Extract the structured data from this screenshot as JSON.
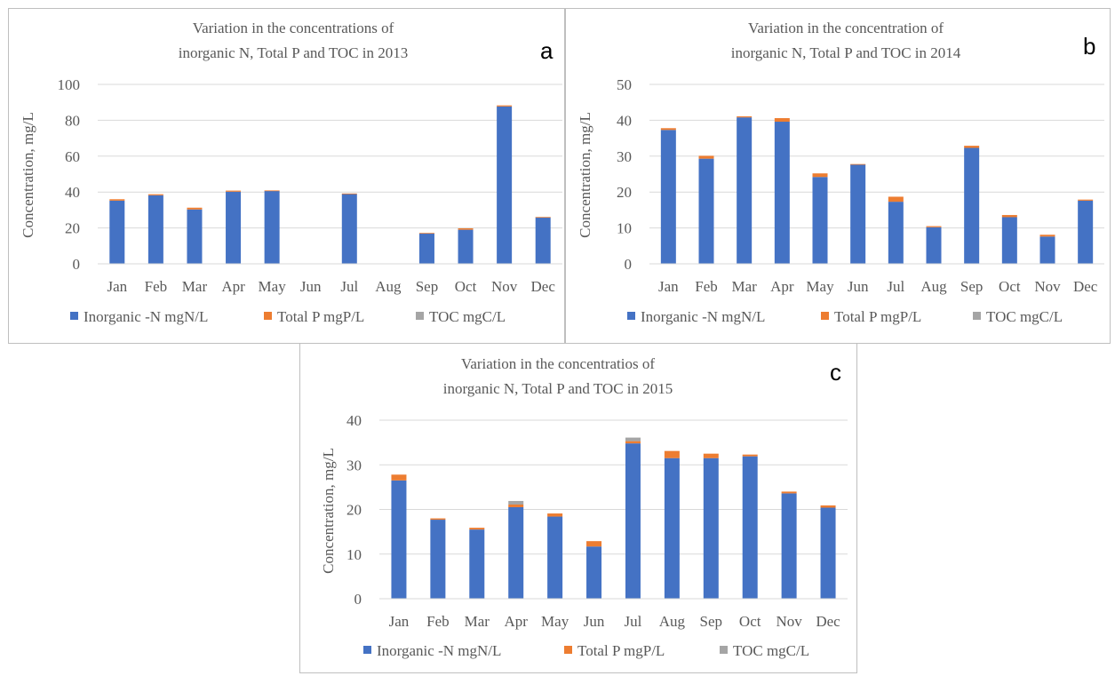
{
  "chart_data": [
    {
      "type": "bar",
      "stacked": true,
      "panel_label": "a",
      "title": [
        "Variation in the concentrations of",
        "inorganic N, Total P and TOC in 2013"
      ],
      "ylabel": "Concentration, mg/L",
      "xlabel": "",
      "ylim": [
        0,
        100
      ],
      "yticks": [
        0,
        20,
        40,
        60,
        80,
        100
      ],
      "grid": true,
      "legend_position": "bottom",
      "categories": [
        "Jan",
        "Feb",
        "Mar",
        "Apr",
        "May",
        "Jun",
        "Jul",
        "Aug",
        "Sep",
        "Oct",
        "Nov",
        "Dec"
      ],
      "series": [
        {
          "name": "Inorganic -N mgN/L",
          "color": "#4472C4",
          "values": [
            35.2,
            38.2,
            30.3,
            40.2,
            40.7,
            0,
            38.9,
            0,
            17.1,
            19.0,
            87.7,
            25.9
          ]
        },
        {
          "name": "Total P mgP/L",
          "color": "#ED7D31",
          "values": [
            0.8,
            0.6,
            1.0,
            0.6,
            0.2,
            0,
            0.3,
            0,
            0.1,
            0.8,
            0.6,
            0.2
          ]
        },
        {
          "name": "TOC mgC/L",
          "color": "#A5A5A5",
          "values": [
            0,
            0,
            0,
            0,
            0,
            0,
            0,
            0,
            0,
            0,
            0,
            0
          ]
        }
      ]
    },
    {
      "type": "bar",
      "stacked": true,
      "panel_label": "b",
      "title": [
        "Variation in the concentration of",
        "inorganic N, Total P and TOC in 2014"
      ],
      "ylabel": "Concentration, mg/L",
      "xlabel": "",
      "ylim": [
        0,
        50
      ],
      "yticks": [
        0,
        10,
        20,
        30,
        40,
        50
      ],
      "grid": true,
      "legend_position": "bottom",
      "categories": [
        "Jan",
        "Feb",
        "Mar",
        "Apr",
        "May",
        "Jun",
        "Jul",
        "Aug",
        "Sep",
        "Oct",
        "Nov",
        "Dec"
      ],
      "series": [
        {
          "name": "Inorganic -N mgN/L",
          "color": "#4472C4",
          "values": [
            37.3,
            29.3,
            40.8,
            39.6,
            24.2,
            27.7,
            17.3,
            10.2,
            32.3,
            13.0,
            7.6,
            17.6
          ]
        },
        {
          "name": "Total P mgP/L",
          "color": "#ED7D31",
          "values": [
            0.5,
            0.8,
            0.3,
            1.0,
            1.0,
            0.1,
            1.4,
            0.3,
            0.6,
            0.6,
            0.5,
            0.3
          ]
        },
        {
          "name": "TOC mgC/L",
          "color": "#A5A5A5",
          "values": [
            0,
            0,
            0,
            0,
            0,
            0,
            0,
            0,
            0,
            0,
            0,
            0
          ]
        }
      ]
    },
    {
      "type": "bar",
      "stacked": true,
      "panel_label": "c",
      "title": [
        "Variation in the concentratios of",
        "inorganic N, Total P and TOC in 2015"
      ],
      "ylabel": "Concentration, mg/L",
      "xlabel": "",
      "ylim": [
        0,
        40
      ],
      "yticks": [
        0,
        10,
        20,
        30,
        40
      ],
      "grid": true,
      "legend_position": "bottom",
      "categories": [
        "Jan",
        "Feb",
        "Mar",
        "Apr",
        "May",
        "Jun",
        "Jul",
        "Aug",
        "Sep",
        "Oct",
        "Nov",
        "Dec"
      ],
      "series": [
        {
          "name": "Inorganic -N mgN/L",
          "color": "#4472C4",
          "values": [
            26.5,
            17.7,
            15.5,
            20.5,
            18.4,
            11.7,
            34.8,
            31.5,
            31.5,
            31.9,
            23.6,
            20.4
          ]
        },
        {
          "name": "Total P mgP/L",
          "color": "#ED7D31",
          "values": [
            1.3,
            0.3,
            0.4,
            0.6,
            0.7,
            1.2,
            0.5,
            1.6,
            1.0,
            0.4,
            0.4,
            0.5
          ]
        },
        {
          "name": "TOC mgC/L",
          "color": "#A5A5A5",
          "values": [
            0,
            0,
            0,
            0.8,
            0,
            0,
            0.8,
            0,
            0,
            0,
            0,
            0
          ]
        }
      ]
    }
  ]
}
